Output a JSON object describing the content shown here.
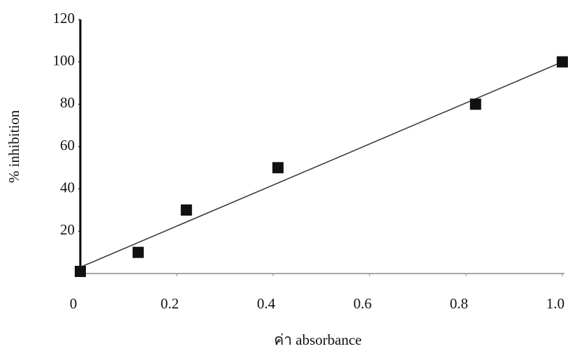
{
  "chart_data": {
    "type": "scatter",
    "x_label": "ค่า absorbance",
    "y_label": "% inhibition",
    "series": [
      {
        "name": null,
        "color": "#111111",
        "x": [
          0,
          0.12,
          0.22,
          0.41,
          0.82,
          1.0
        ],
        "values": [
          1,
          10,
          30,
          50,
          80,
          100
        ]
      }
    ],
    "trendline": {
      "x": [
        0,
        1.0
      ],
      "y": [
        3,
        100
      ],
      "color": "#333333"
    },
    "xlim": [
      0,
      1.0
    ],
    "xticks": [
      0,
      0.2,
      0.4,
      0.6,
      0.8,
      {
        "value": 1.0,
        "label": "1.0"
      }
    ],
    "ylim": [
      0,
      120
    ],
    "yticks": [
      20,
      40,
      60,
      80,
      100,
      120
    ],
    "grid": false
  }
}
